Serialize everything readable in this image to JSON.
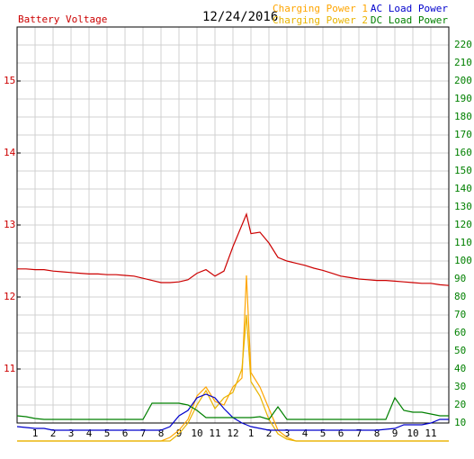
{
  "chart_data": {
    "type": "line",
    "title": "12/24/2016",
    "x": [
      0,
      0.5,
      1,
      1.5,
      2,
      2.5,
      3,
      3.5,
      4,
      4.5,
      5,
      5.5,
      6,
      6.5,
      7,
      7.5,
      8,
      8.5,
      9,
      9.5,
      10,
      10.5,
      11,
      11.5,
      12,
      12.5,
      12.75,
      13,
      13.5,
      14,
      14.5,
      15,
      15.5,
      16,
      16.5,
      17,
      17.5,
      18,
      18.5,
      19,
      19.5,
      20,
      20.5,
      21,
      21.5,
      22,
      22.5,
      23,
      23.5,
      24
    ],
    "xlim": [
      0,
      24
    ],
    "xticks": [
      1,
      2,
      3,
      4,
      5,
      6,
      7,
      8,
      9,
      10,
      11,
      12,
      {
        "value": 13,
        "label": "1"
      },
      {
        "value": 14,
        "label": "2"
      },
      {
        "value": 15,
        "label": "3"
      },
      {
        "value": 16,
        "label": "4"
      },
      {
        "value": 17,
        "label": "5"
      },
      {
        "value": 18,
        "label": "6"
      },
      {
        "value": 19,
        "label": "7"
      },
      {
        "value": 20,
        "label": "8"
      },
      {
        "value": 21,
        "label": "9"
      },
      {
        "value": 22,
        "label": "10"
      },
      {
        "value": 23,
        "label": "11"
      }
    ],
    "ylim": [
      10.25,
      15.75
    ],
    "yticks": [
      11,
      12,
      13,
      14,
      15
    ],
    "y2lim": [
      10,
      230
    ],
    "y2ticks": [
      10,
      20,
      30,
      40,
      50,
      60,
      70,
      80,
      90,
      100,
      110,
      120,
      130,
      140,
      150,
      160,
      170,
      180,
      190,
      200,
      210,
      220
    ],
    "grid": true,
    "series": [
      {
        "name": "Battery Voltage",
        "color": "#cc0000",
        "values": [
          12.39,
          12.39,
          12.38,
          12.38,
          12.36,
          12.35,
          12.34,
          12.33,
          12.32,
          12.32,
          12.31,
          12.31,
          12.3,
          12.29,
          12.26,
          12.23,
          12.2,
          12.2,
          12.21,
          12.24,
          12.33,
          12.38,
          12.29,
          12.36,
          12.7,
          13.0,
          13.15,
          12.88,
          12.9,
          12.75,
          12.55,
          12.5,
          12.47,
          12.44,
          12.4,
          12.37,
          12.33,
          12.29,
          12.27,
          12.25,
          12.24,
          12.23,
          12.23,
          12.22,
          12.21,
          12.2,
          12.19,
          12.19,
          12.17,
          12.16
        ]
      },
      {
        "name": "Charging Power 1",
        "color": "#ffa500",
        "axis": "y2",
        "values": [
          0,
          0,
          0,
          0,
          0,
          0,
          0,
          0,
          0,
          0,
          0,
          0,
          0,
          0,
          0,
          0,
          0,
          2,
          6,
          12,
          25,
          30,
          22,
          20,
          30,
          35,
          92,
          38,
          30,
          18,
          6,
          2,
          0,
          0,
          0,
          0,
          0,
          0,
          0,
          0,
          0,
          0,
          0,
          0,
          0,
          0,
          0,
          0,
          0,
          0
        ]
      },
      {
        "name": "Charging Power 2",
        "color": "#e8b400",
        "axis": "y2",
        "values": [
          0,
          0,
          0,
          0,
          0,
          0,
          0,
          0,
          0,
          0,
          0,
          0,
          0,
          0,
          0,
          0,
          0,
          0,
          4,
          10,
          20,
          28,
          18,
          24,
          27,
          40,
          70,
          33,
          25,
          12,
          4,
          1,
          0,
          0,
          0,
          0,
          0,
          0,
          0,
          0,
          0,
          0,
          0,
          0,
          0,
          0,
          0,
          0,
          0,
          0
        ]
      },
      {
        "name": "AC Load Power",
        "color": "#0000cc",
        "axis": "y2",
        "values": [
          8,
          7.5,
          7,
          7,
          6,
          6,
          6,
          6,
          6,
          6,
          6,
          6,
          6,
          6,
          6,
          6,
          6,
          8,
          14,
          17,
          24,
          26,
          24,
          18,
          13,
          10,
          9,
          8,
          7,
          6,
          6,
          6,
          6,
          6,
          6,
          6,
          6,
          6,
          6,
          6,
          6,
          6,
          6.5,
          7,
          9,
          9,
          9,
          10,
          12,
          12
        ]
      },
      {
        "name": "DC Load Power",
        "color": "#008000",
        "axis": "y2",
        "values": [
          14,
          13.5,
          12.5,
          12,
          12,
          12,
          12,
          12,
          12,
          12,
          12,
          12,
          12,
          12,
          12,
          21,
          21,
          21,
          21,
          20,
          17,
          13,
          13,
          13,
          13,
          13,
          13,
          13,
          13.5,
          12,
          19,
          12,
          12,
          12,
          12,
          12,
          12,
          12,
          12,
          12,
          12,
          12,
          12,
          24,
          17,
          16,
          16,
          15,
          14,
          14
        ]
      }
    ]
  }
}
